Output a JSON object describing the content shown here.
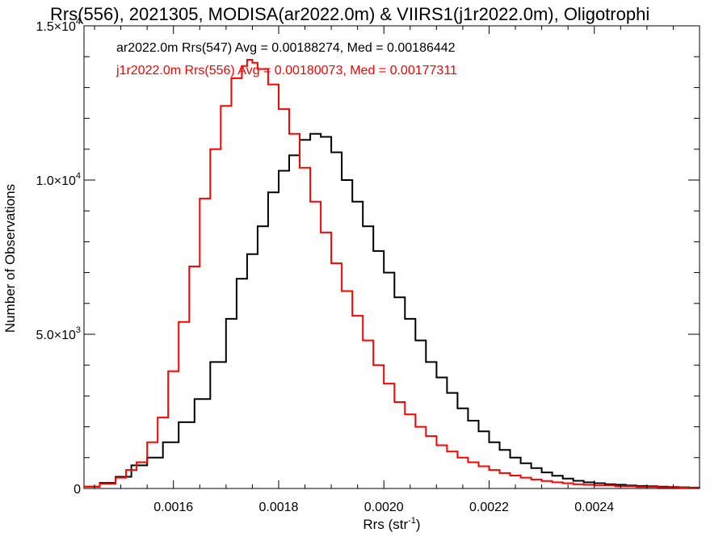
{
  "chart_data": {
    "type": "line",
    "title": "Rrs(556), 2021305, MODISA(ar2022.0m) & VIIRS1(j1r2022.0m), Oligotrophi",
    "xlabel": {
      "main": "Rrs (str",
      "sup": "-1",
      "tail": ")"
    },
    "ylabel": "Number of Observations",
    "xlim": [
      0.00143,
      0.0026
    ],
    "ylim": [
      0,
      15000
    ],
    "x_ticks": [
      {
        "value": 0.0016,
        "label": "0.0016"
      },
      {
        "value": 0.0018,
        "label": "0.0018"
      },
      {
        "value": 0.002,
        "label": "0.0020"
      },
      {
        "value": 0.0022,
        "label": "0.0022"
      },
      {
        "value": 0.0024,
        "label": "0.0024"
      }
    ],
    "y_ticks": [
      {
        "value": 0,
        "mant": "0",
        "exp": ""
      },
      {
        "value": 5000,
        "mant": "5.0×10",
        "exp": "3"
      },
      {
        "value": 10000,
        "mant": "1.0×10",
        "exp": "4"
      },
      {
        "value": 15000,
        "mant": "1.5×10",
        "exp": "4"
      }
    ],
    "annotations": [
      "ar2022.0m Rrs(547) Avg = 0.00188274, Med = 0.00186442",
      "j1r2022.0m Rrs(556) Avg = 0.00180073, Med = 0.00177311"
    ],
    "series": [
      {
        "color": "#000000",
        "x": [
          0.00143,
          0.00146,
          0.00149,
          0.00152,
          0.00155,
          0.00158,
          0.00161,
          0.00164,
          0.00167,
          0.0017,
          0.00172,
          0.00174,
          0.00176,
          0.00178,
          0.0018,
          0.00182,
          0.00184,
          0.00186,
          0.00188,
          0.0019,
          0.00192,
          0.00194,
          0.00196,
          0.00198,
          0.002,
          0.00202,
          0.00204,
          0.00206,
          0.00208,
          0.0021,
          0.00212,
          0.00214,
          0.00216,
          0.00218,
          0.0022,
          0.00222,
          0.00224,
          0.00226,
          0.00228,
          0.0023,
          0.00232,
          0.00234,
          0.00236,
          0.00238,
          0.0024,
          0.00242,
          0.00244,
          0.00246,
          0.00248,
          0.0025,
          0.00252,
          0.00254,
          0.00256,
          0.00258,
          0.0026
        ],
        "y": [
          60,
          180,
          380,
          750,
          1000,
          1500,
          2150,
          2900,
          4100,
          5500,
          6800,
          7600,
          8500,
          9600,
          10300,
          10800,
          11300,
          11500,
          11400,
          10900,
          10000,
          9300,
          8500,
          7700,
          7000,
          6200,
          5500,
          4800,
          4100,
          3600,
          3100,
          2600,
          2200,
          1850,
          1500,
          1250,
          1000,
          820,
          660,
          520,
          410,
          320,
          250,
          200,
          170,
          140,
          120,
          100,
          80,
          70,
          60,
          50,
          40,
          30,
          20
        ]
      },
      {
        "color": "#ff0000",
        "x": [
          0.00143,
          0.00146,
          0.00149,
          0.00151,
          0.00153,
          0.00155,
          0.00157,
          0.00159,
          0.00161,
          0.00163,
          0.00165,
          0.00167,
          0.00169,
          0.00171,
          0.00173,
          0.00174,
          0.00175,
          0.00176,
          0.00178,
          0.0018,
          0.00182,
          0.00184,
          0.00186,
          0.00188,
          0.0019,
          0.00192,
          0.00194,
          0.00196,
          0.00198,
          0.002,
          0.00202,
          0.00204,
          0.00206,
          0.00208,
          0.0021,
          0.00212,
          0.00214,
          0.00216,
          0.00218,
          0.0022,
          0.00222,
          0.00224,
          0.00226,
          0.00228,
          0.0023,
          0.00232,
          0.00234,
          0.00236,
          0.00238,
          0.0024,
          0.00244,
          0.00248,
          0.00252,
          0.00256,
          0.0026
        ],
        "y": [
          60,
          150,
          350,
          600,
          850,
          1500,
          2300,
          3800,
          5400,
          7200,
          9400,
          11000,
          12400,
          13300,
          13700,
          13900,
          13800,
          13600,
          13100,
          12300,
          11500,
          10400,
          9300,
          8300,
          7300,
          6400,
          5600,
          4800,
          4000,
          3400,
          2800,
          2400,
          2000,
          1700,
          1400,
          1200,
          1000,
          850,
          720,
          600,
          500,
          420,
          350,
          290,
          240,
          200,
          170,
          140,
          120,
          100,
          70,
          50,
          40,
          30,
          20
        ]
      }
    ]
  }
}
